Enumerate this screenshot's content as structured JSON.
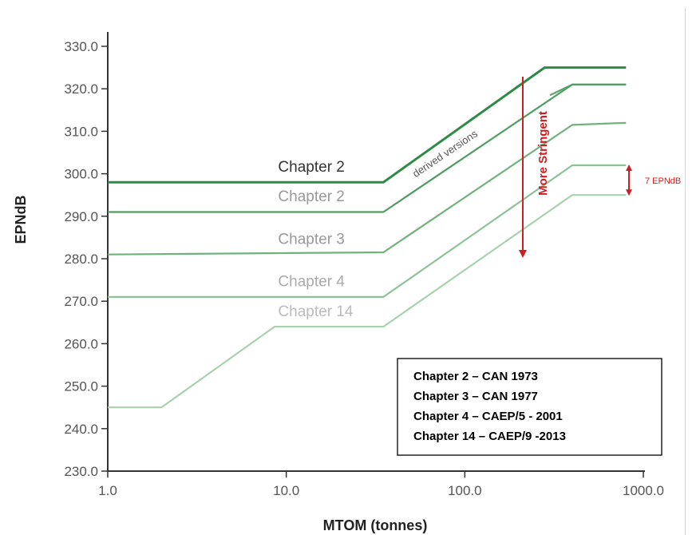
{
  "chart_data": {
    "type": "line",
    "title": "",
    "xlabel": "MTOM (tonnes)",
    "ylabel": "EPNdB",
    "xscale": "log",
    "xlim": [
      1.0,
      1000.0
    ],
    "ylim": [
      230.0,
      330.0
    ],
    "xticks": [
      "1.0",
      "10.0",
      "100.0",
      "1000.0"
    ],
    "yticks": [
      "230.0",
      "240.0",
      "250.0",
      "260.0",
      "270.0",
      "280.0",
      "290.0",
      "300.0",
      "310.0",
      "320.0",
      "330.0"
    ],
    "grid": false,
    "series": [
      {
        "name": "Chapter 2",
        "color": "#2e8b45",
        "x": [
          1.0,
          35.0,
          280.0,
          800.0
        ],
        "y": [
          298,
          298,
          325,
          325
        ]
      },
      {
        "name": "",
        "color": "#5aa66a",
        "x": [
          300.0,
          400.0,
          800.0
        ],
        "y": [
          318.5,
          321,
          321
        ]
      },
      {
        "name": "Chapter 2",
        "color": "#4f9d60",
        "x": [
          1.0,
          35.0,
          400.0,
          800.0
        ],
        "y": [
          291,
          291,
          321,
          321
        ]
      },
      {
        "name": "Chapter 3",
        "color": "#6fb27c",
        "x": [
          1.0,
          35.0,
          400.0,
          800.0
        ],
        "y": [
          281,
          281.5,
          311.5,
          312
        ]
      },
      {
        "name": "Chapter 4",
        "color": "#8cc296",
        "x": [
          1.0,
          35.0,
          400.0,
          800.0
        ],
        "y": [
          271,
          271,
          302,
          302
        ]
      },
      {
        "name": "Chapter 14",
        "color": "#a8d1ae",
        "x": [
          1.0,
          2.0,
          8.6,
          35.0,
          400.0,
          800.0
        ],
        "y": [
          245,
          245,
          264,
          264,
          295,
          295
        ]
      }
    ],
    "series_labels": [
      {
        "text": "Chapter 2",
        "color": "#333333",
        "x": 9.0,
        "y": 300.5
      },
      {
        "text": "Chapter 2",
        "color": "#999999",
        "x": 9.0,
        "y": 293.5
      },
      {
        "text": "Chapter 3",
        "color": "#999999",
        "x": 9.0,
        "y": 283.5
      },
      {
        "text": "Chapter 4",
        "color": "#aaaaaa",
        "x": 9.0,
        "y": 273.5
      },
      {
        "text": "Chapter 14",
        "color": "#bbbbbb",
        "x": 9.0,
        "y": 266.5
      }
    ],
    "annotations": {
      "derived_versions": "derived versions",
      "more_stringent": "More Stringent",
      "delta": "7 EPNdB",
      "delta_range": [
        295,
        302
      ],
      "arrow_color": "#cc1f1f"
    },
    "legend": {
      "placement": "bottom-right",
      "entries": [
        "Chapter 2 – CAN 1973",
        "Chapter 3 – CAN 1977",
        "Chapter 4 – CAEP/5 - 2001",
        "Chapter 14 – CAEP/9 -2013"
      ]
    }
  }
}
